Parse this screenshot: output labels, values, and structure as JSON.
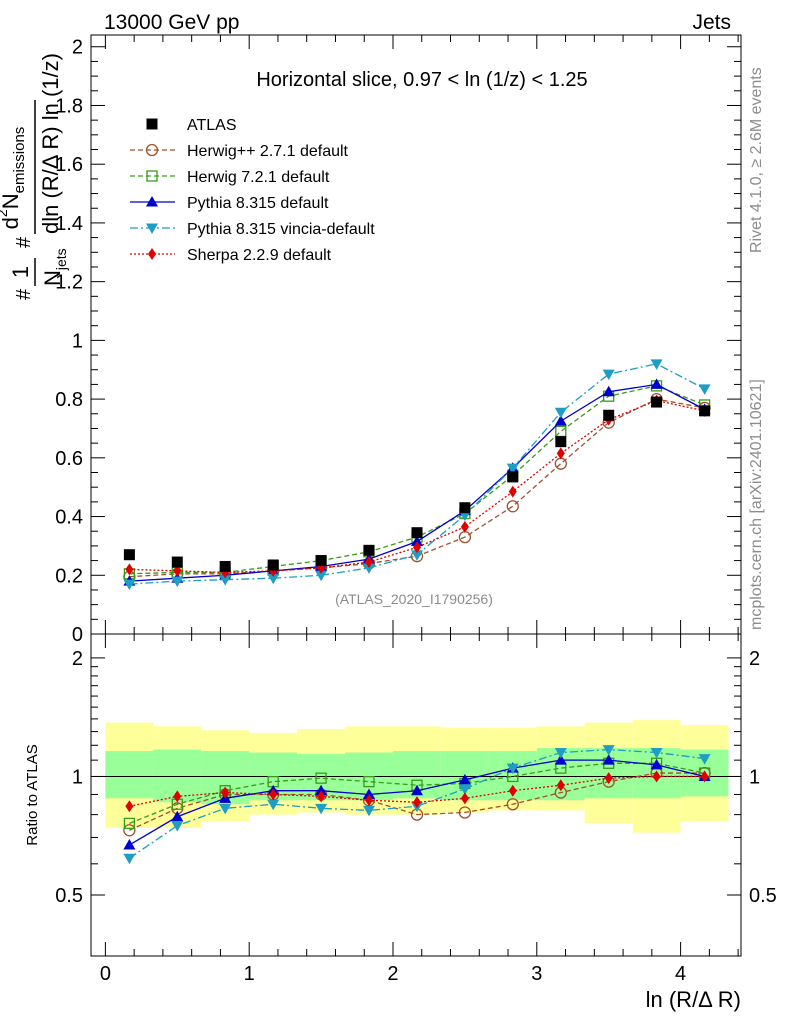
{
  "header": {
    "left": "13000 GeV pp",
    "right": "Jets",
    "side_top": "Rivet 4.1.0, ≥ 2.6M events",
    "side_bottom": "mcplots.cern.ch [arXiv:2401.10621]",
    "watermark": "(ATLAS_2020_I1790256)"
  },
  "colors": {
    "atlas": "#000000",
    "herwigpp": "#a0522d",
    "herwig7": "#3a9a1c",
    "pythia": "#0000cc",
    "vincia": "#1e9ec4",
    "sherpa": "#e00000",
    "band_inner": "#99ff99",
    "band_outer": "#ffff99"
  },
  "chart_data": [
    {
      "type": "scatter",
      "title": "Horizontal slice, 0.97 < ln (1/z) < 1.25",
      "ylabel": {
        "frac_num": "1",
        "frac_den_main": "N",
        "frac_den_sub": "jets",
        "dnum_sup": "2",
        "dnum_main": "d",
        "dnum_N": "N",
        "dnum_sub": "emissions",
        "dden": "dln (R/Δ R) ln (1/z)",
        "hash": "#"
      },
      "xlabel": "ln (R/Δ R)",
      "xlim": [
        -0.1,
        4.42
      ],
      "ylim": [
        0,
        2.04
      ],
      "ytick_labels": [
        "0",
        "0.2",
        "0.4",
        "0.6",
        "0.8",
        "1",
        "1.2",
        "1.4",
        "1.6",
        "1.8",
        "2"
      ],
      "ytick_values": [
        0,
        0.2,
        0.4,
        0.6,
        0.8,
        1.0,
        1.2,
        1.4,
        1.6,
        1.8,
        2.0
      ],
      "x": [
        0.167,
        0.5,
        0.833,
        1.167,
        1.5,
        1.833,
        2.167,
        2.5,
        2.833,
        3.167,
        3.5,
        3.833,
        4.167
      ],
      "bin_edges": [
        0,
        0.333,
        0.667,
        1.0,
        1.333,
        1.667,
        2.0,
        2.333,
        2.667,
        3.0,
        3.333,
        3.667,
        4.0,
        4.333
      ],
      "series": [
        {
          "key": "atlas",
          "name": "ATLAS",
          "values": [
            0.27,
            0.245,
            0.23,
            0.235,
            0.25,
            0.285,
            0.345,
            0.43,
            0.535,
            0.655,
            0.745,
            0.79,
            0.76
          ]
        },
        {
          "key": "herwigpp",
          "name": "Herwig++ 2.7.1 default",
          "values": [
            0.195,
            0.205,
            0.205,
            0.215,
            0.225,
            0.24,
            0.265,
            0.33,
            0.435,
            0.58,
            0.72,
            0.8,
            0.77
          ]
        },
        {
          "key": "herwig7",
          "name": "Herwig 7.2.1 default",
          "values": [
            0.205,
            0.21,
            0.21,
            0.23,
            0.25,
            0.28,
            0.33,
            0.41,
            0.54,
            0.69,
            0.81,
            0.845,
            0.78
          ]
        },
        {
          "key": "pythia",
          "name": "Pythia 8.315 default",
          "values": [
            0.18,
            0.19,
            0.2,
            0.215,
            0.23,
            0.255,
            0.315,
            0.42,
            0.565,
            0.725,
            0.825,
            0.85,
            0.765
          ]
        },
        {
          "key": "vincia",
          "name": "Pythia 8.315 vincia-default",
          "values": [
            0.17,
            0.18,
            0.185,
            0.19,
            0.2,
            0.225,
            0.27,
            0.405,
            0.565,
            0.755,
            0.885,
            0.92,
            0.835
          ]
        },
        {
          "key": "sherpa",
          "name": "Sherpa 2.2.9 default",
          "values": [
            0.22,
            0.215,
            0.21,
            0.215,
            0.225,
            0.245,
            0.295,
            0.365,
            0.485,
            0.615,
            0.73,
            0.795,
            0.76
          ]
        }
      ]
    },
    {
      "type": "scatter",
      "title": "",
      "ylabel": "Ratio to ATLAS",
      "xlabel": "ln (R/Δ R)",
      "xlim": [
        -0.1,
        4.42
      ],
      "ylim": [
        0.35,
        2.3
      ],
      "ytick_labels": [
        "0.5",
        "1",
        "2"
      ],
      "ytick_values": [
        0.5,
        1.0,
        2.0
      ],
      "xtick_labels": [
        "0",
        "1",
        "2",
        "3",
        "4"
      ],
      "xtick_values": [
        0,
        1,
        2,
        3,
        4
      ],
      "band_inner": {
        "lo": [
          0.88,
          0.86,
          0.85,
          0.87,
          0.87,
          0.87,
          0.88,
          0.87,
          0.87,
          0.87,
          0.88,
          0.88,
          0.89
        ],
        "hi": [
          1.16,
          1.17,
          1.16,
          1.15,
          1.14,
          1.15,
          1.16,
          1.16,
          1.16,
          1.18,
          1.18,
          1.18,
          1.17
        ]
      },
      "band_outer": {
        "lo": [
          0.74,
          0.74,
          0.77,
          0.8,
          0.81,
          0.8,
          0.8,
          0.81,
          0.82,
          0.82,
          0.76,
          0.72,
          0.77
        ],
        "hi": [
          1.37,
          1.34,
          1.31,
          1.29,
          1.32,
          1.34,
          1.34,
          1.33,
          1.33,
          1.34,
          1.37,
          1.39,
          1.35
        ]
      },
      "series": [
        {
          "key": "herwigpp",
          "name": "Herwig++ 2.7.1 default",
          "values": [
            0.73,
            0.83,
            0.9,
            0.9,
            0.9,
            0.87,
            0.8,
            0.81,
            0.85,
            0.91,
            0.97,
            1.02,
            1.02
          ]
        },
        {
          "key": "herwig7",
          "name": "Herwig 7.2.1 default",
          "values": [
            0.76,
            0.85,
            0.92,
            0.97,
            0.99,
            0.97,
            0.95,
            0.96,
            1.0,
            1.05,
            1.08,
            1.08,
            1.02
          ]
        },
        {
          "key": "pythia",
          "name": "Pythia 8.315 default",
          "values": [
            0.67,
            0.79,
            0.88,
            0.92,
            0.92,
            0.9,
            0.92,
            0.98,
            1.05,
            1.1,
            1.1,
            1.07,
            1.0
          ]
        },
        {
          "key": "vincia",
          "name": "Pythia 8.315 vincia-default",
          "values": [
            0.62,
            0.75,
            0.83,
            0.85,
            0.83,
            0.82,
            0.84,
            0.93,
            1.05,
            1.15,
            1.17,
            1.15,
            1.11
          ]
        },
        {
          "key": "sherpa",
          "name": "Sherpa 2.2.9 default",
          "values": [
            0.84,
            0.89,
            0.91,
            0.9,
            0.89,
            0.87,
            0.86,
            0.88,
            0.92,
            0.95,
            0.99,
            1.0,
            1.0
          ]
        }
      ]
    }
  ]
}
